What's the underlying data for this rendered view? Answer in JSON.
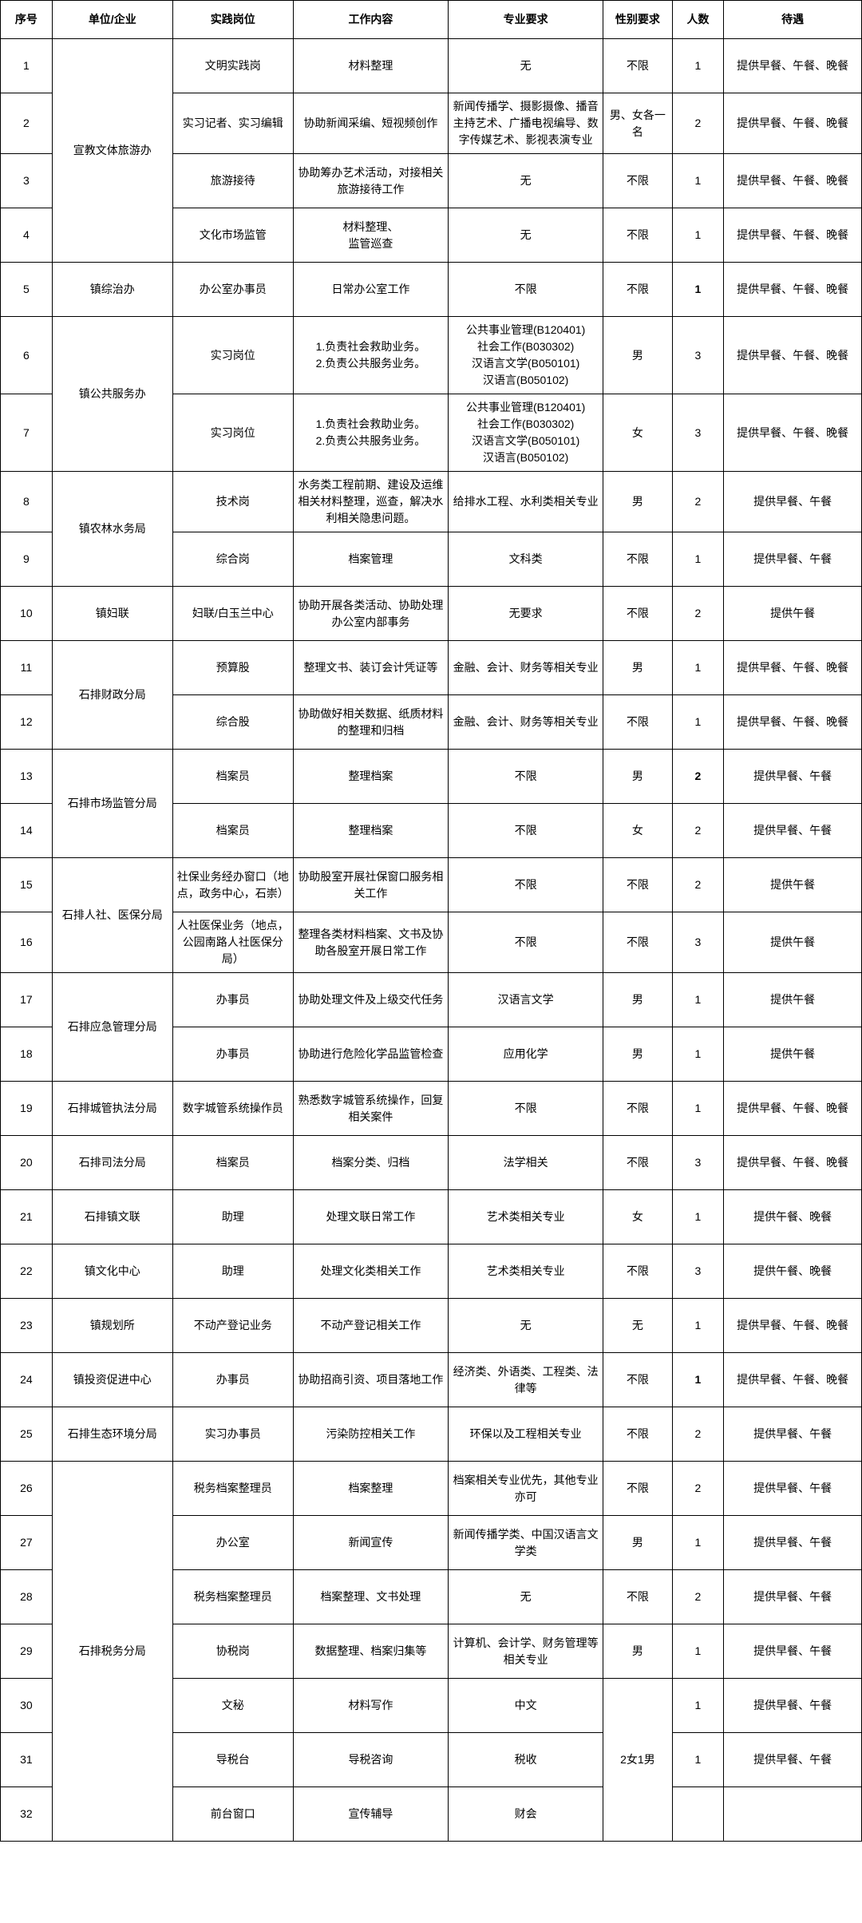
{
  "table": {
    "columns": [
      "序号",
      "单位/企业",
      "实践岗位",
      "工作内容",
      "专业要求",
      "性别要求",
      "人数",
      "待遇"
    ],
    "col_widths_pct": [
      6,
      14,
      14,
      18,
      18,
      8,
      6,
      16
    ],
    "header_fontsize": 14,
    "body_fontsize": 14,
    "border_color": "#000000",
    "background_color": "#ffffff",
    "text_color": "#000000",
    "rows": [
      {
        "id": "1",
        "unit": "",
        "pos": "文明实践岗",
        "work": "材料整理",
        "major": "无",
        "gender": "不限",
        "num": "1",
        "num_bold": false,
        "treat": "提供早餐、午餐、晚餐"
      },
      {
        "id": "2",
        "unit": "",
        "pos": "实习记者、实习编辑",
        "work": "协助新闻采编、短视频创作",
        "major": "新闻传播学、摄影摄像、播音主持艺术、广播电视编导、数字传媒艺术、影视表演专业",
        "gender": "男、女各一名",
        "num": "2",
        "num_bold": false,
        "treat": "提供早餐、午餐、晚餐"
      },
      {
        "id": "3",
        "unit": "",
        "pos": "旅游接待",
        "work": "协助筹办艺术活动，对接相关旅游接待工作",
        "major": "无",
        "gender": "不限",
        "num": "1",
        "num_bold": false,
        "treat": "提供早餐、午餐、晚餐"
      },
      {
        "id": "4",
        "unit": "",
        "pos": "文化市场监管",
        "work": "材料整理、\n监管巡查",
        "major": "无",
        "gender": "不限",
        "num": "1",
        "num_bold": false,
        "treat": "提供早餐、午餐、晚餐"
      },
      {
        "id": "5",
        "unit": "镇综治办",
        "pos": "办公室办事员",
        "work": "日常办公室工作",
        "major": "不限",
        "gender": "不限",
        "num": "1",
        "num_bold": true,
        "treat": "提供早餐、午餐、晚餐"
      },
      {
        "id": "6",
        "unit": "",
        "pos": "实习岗位",
        "work": "1.负责社会救助业务。\n2.负责公共服务业务。",
        "major": "公共事业管理(B120401)\n社会工作(B030302)\n汉语言文学(B050101)\n汉语言(B050102)",
        "gender": "男",
        "num": "3",
        "num_bold": false,
        "treat": "提供早餐、午餐、晚餐"
      },
      {
        "id": "7",
        "unit": "",
        "pos": "实习岗位",
        "work": "1.负责社会救助业务。\n2.负责公共服务业务。",
        "major": "公共事业管理(B120401)\n社会工作(B030302)\n汉语言文学(B050101)\n汉语言(B050102)",
        "gender": "女",
        "num": "3",
        "num_bold": false,
        "treat": "提供早餐、午餐、晚餐"
      },
      {
        "id": "8",
        "unit": "",
        "pos": "技术岗",
        "work": "水务类工程前期、建设及运维相关材料整理，巡查，解决水利相关隐患问题。",
        "major": "给排水工程、水利类相关专业",
        "gender": "男",
        "num": "2",
        "num_bold": false,
        "treat": "提供早餐、午餐"
      },
      {
        "id": "9",
        "unit": "",
        "pos": "综合岗",
        "work": "档案管理",
        "major": "文科类",
        "gender": "不限",
        "num": "1",
        "num_bold": false,
        "treat": "提供早餐、午餐"
      },
      {
        "id": "10",
        "unit": "镇妇联",
        "pos": "妇联/白玉兰中心",
        "work": "协助开展各类活动、协助处理办公室内部事务",
        "major": "无要求",
        "gender": "不限",
        "num": "2",
        "num_bold": false,
        "treat": "提供午餐"
      },
      {
        "id": "11",
        "unit": "",
        "pos": "预算股",
        "work": "整理文书、装订会计凭证等",
        "major": "金融、会计、财务等相关专业",
        "gender": "男",
        "num": "1",
        "num_bold": false,
        "treat": "提供早餐、午餐、晚餐"
      },
      {
        "id": "12",
        "unit": "",
        "pos": "综合股",
        "work": "协助做好相关数据、纸质材料的整理和归档",
        "major": "金融、会计、财务等相关专业",
        "gender": "不限",
        "num": "1",
        "num_bold": false,
        "treat": "提供早餐、午餐、晚餐"
      },
      {
        "id": "13",
        "unit": "",
        "pos": "档案员",
        "work": "整理档案",
        "major": "不限",
        "gender": "男",
        "num": "2",
        "num_bold": true,
        "treat": "提供早餐、午餐"
      },
      {
        "id": "14",
        "unit": "",
        "pos": "档案员",
        "work": "整理档案",
        "major": "不限",
        "gender": "女",
        "num": "2",
        "num_bold": false,
        "treat": "提供早餐、午餐"
      },
      {
        "id": "15",
        "unit": "",
        "pos": "社保业务经办窗口（地点，政务中心，石崇）",
        "work": "协助股室开展社保窗口服务相关工作",
        "major": "不限",
        "gender": "不限",
        "num": "2",
        "num_bold": false,
        "treat": "提供午餐"
      },
      {
        "id": "16",
        "unit": "",
        "pos": "人社医保业务（地点，公园南路人社医保分局）",
        "work": "整理各类材料档案、文书及协助各股室开展日常工作",
        "major": "不限",
        "gender": "不限",
        "num": "3",
        "num_bold": false,
        "treat": "提供午餐"
      },
      {
        "id": "17",
        "unit": "",
        "pos": "办事员",
        "work": "协助处理文件及上级交代任务",
        "major": "汉语言文学",
        "gender": "男",
        "num": "1",
        "num_bold": false,
        "treat": "提供午餐"
      },
      {
        "id": "18",
        "unit": "",
        "pos": "办事员",
        "work": "协助进行危险化学品监管检查",
        "major": "应用化学",
        "gender": "男",
        "num": "1",
        "num_bold": false,
        "treat": "提供午餐"
      },
      {
        "id": "19",
        "unit": "石排城管执法分局",
        "pos": "数字城管系统操作员",
        "work": "熟悉数字城管系统操作，回复相关案件",
        "major": "不限",
        "gender": "不限",
        "num": "1",
        "num_bold": false,
        "treat": "提供早餐、午餐、晚餐"
      },
      {
        "id": "20",
        "unit": "石排司法分局",
        "pos": "档案员",
        "work": "档案分类、归档",
        "major": "法学相关",
        "gender": "不限",
        "num": "3",
        "num_bold": false,
        "treat": "提供早餐、午餐、晚餐"
      },
      {
        "id": "21",
        "unit": "石排镇文联",
        "pos": "助理",
        "work": "处理文联日常工作",
        "major": "艺术类相关专业",
        "gender": "女",
        "num": "1",
        "num_bold": false,
        "treat": "提供午餐、晚餐"
      },
      {
        "id": "22",
        "unit": "镇文化中心",
        "pos": "助理",
        "work": "处理文化类相关工作",
        "major": "艺术类相关专业",
        "gender": "不限",
        "num": "3",
        "num_bold": false,
        "treat": "提供午餐、晚餐"
      },
      {
        "id": "23",
        "unit": "镇规划所",
        "pos": "不动产登记业务",
        "work": "不动产登记相关工作",
        "major": "无",
        "gender": "无",
        "num": "1",
        "num_bold": false,
        "treat": "提供早餐、午餐、晚餐"
      },
      {
        "id": "24",
        "unit": "镇投资促进中心",
        "pos": "办事员",
        "work": "协助招商引资、项目落地工作",
        "major": "经济类、外语类、工程类、法律等",
        "gender": "不限",
        "num": "1",
        "num_bold": true,
        "treat": "提供早餐、午餐、晚餐"
      },
      {
        "id": "25",
        "unit": "石排生态环境分局",
        "pos": "实习办事员",
        "work": "污染防控相关工作",
        "major": "环保以及工程相关专业",
        "gender": "不限",
        "num": "2",
        "num_bold": false,
        "treat": "提供早餐、午餐"
      },
      {
        "id": "26",
        "unit": "",
        "pos": "税务档案整理员",
        "work": "档案整理",
        "major": "档案相关专业优先，其他专业亦可",
        "gender": "不限",
        "num": "2",
        "num_bold": false,
        "treat": "提供早餐、午餐"
      },
      {
        "id": "27",
        "unit": "",
        "pos": "办公室",
        "work": "新闻宣传",
        "major": "新闻传播学类、中国汉语言文学类",
        "gender": "男",
        "num": "1",
        "num_bold": false,
        "treat": "提供早餐、午餐"
      },
      {
        "id": "28",
        "unit": "",
        "pos": "税务档案整理员",
        "work": "档案整理、文书处理",
        "major": "无",
        "gender": "不限",
        "num": "2",
        "num_bold": false,
        "treat": "提供早餐、午餐"
      },
      {
        "id": "29",
        "unit": "",
        "pos": "协税岗",
        "work": "数据整理、档案归集等",
        "major": "计算机、会计学、财务管理等相关专业",
        "gender": "男",
        "num": "1",
        "num_bold": false,
        "treat": "提供早餐、午餐"
      },
      {
        "id": "30",
        "unit": "",
        "pos": "文秘",
        "work": "材料写作",
        "major": "中文",
        "gender": "",
        "num": "1",
        "num_bold": false,
        "treat": "提供早餐、午餐"
      },
      {
        "id": "31",
        "unit": "",
        "pos": "导税台",
        "work": "导税咨询",
        "major": "税收",
        "gender": "",
        "num": "1",
        "num_bold": false,
        "treat": "提供早餐、午餐"
      },
      {
        "id": "32",
        "unit": "",
        "pos": "前台窗口",
        "work": "宣传辅导",
        "major": "财会",
        "gender": "",
        "num": "",
        "num_bold": false,
        "treat": ""
      }
    ],
    "unit_spans": [
      {
        "start": 0,
        "span": 4,
        "label": "宣教文体旅游办"
      },
      {
        "start": 5,
        "span": 2,
        "label": "镇公共服务办"
      },
      {
        "start": 7,
        "span": 2,
        "label": "镇农林水务局"
      },
      {
        "start": 10,
        "span": 2,
        "label": "石排财政分局"
      },
      {
        "start": 12,
        "span": 2,
        "label": "石排市场监管分局"
      },
      {
        "start": 14,
        "span": 2,
        "label": "石排人社、医保分局"
      },
      {
        "start": 16,
        "span": 2,
        "label": "石排应急管理分局"
      },
      {
        "start": 25,
        "span": 7,
        "label": "石排税务分局"
      }
    ],
    "gender_spans": [
      {
        "start": 29,
        "span": 3,
        "label": "2女1男"
      }
    ]
  }
}
